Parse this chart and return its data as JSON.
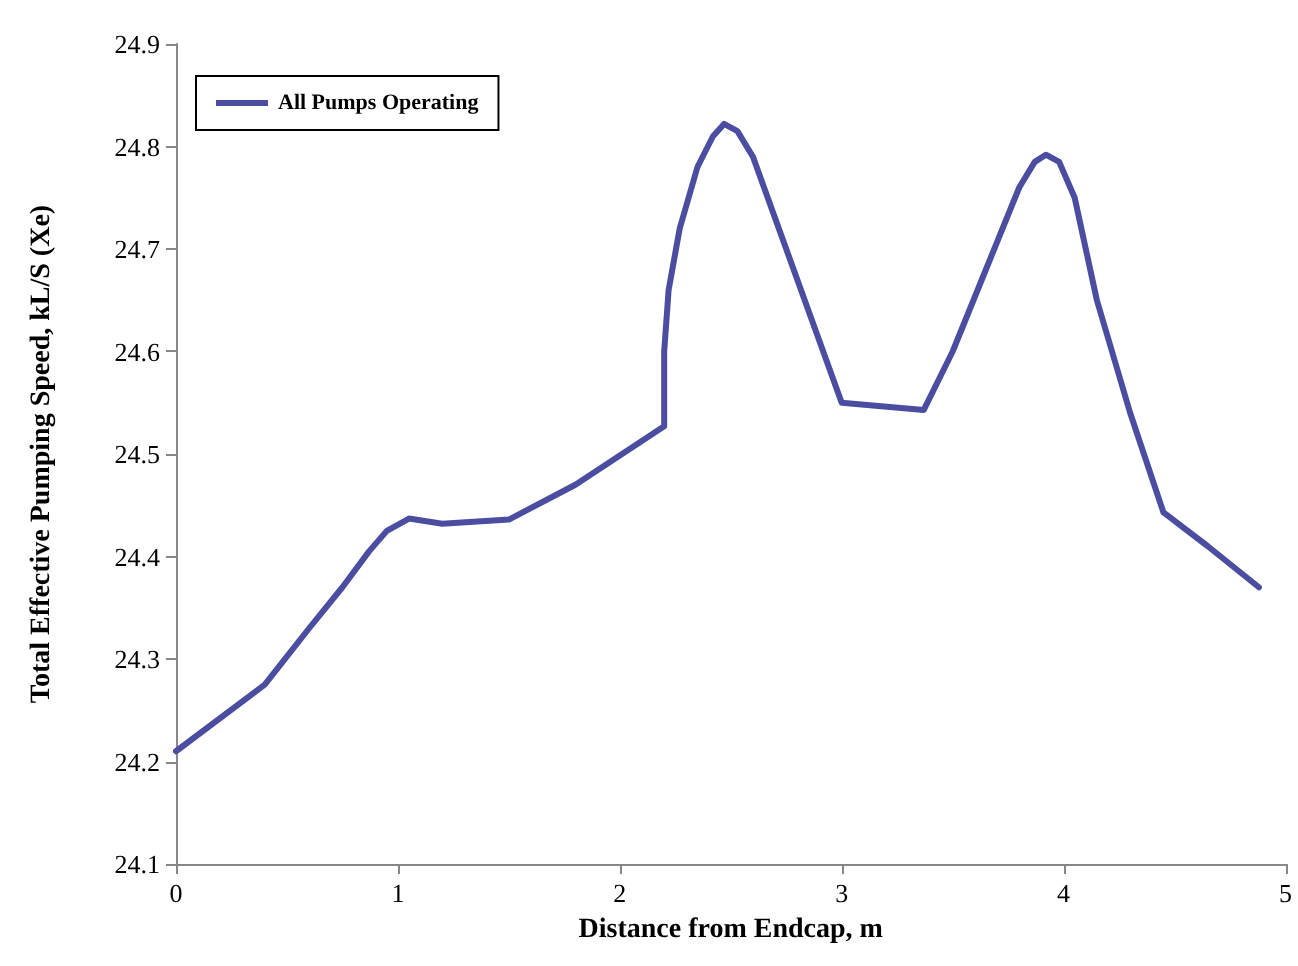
{
  "chart_data": {
    "type": "line",
    "xlabel": "Distance from Endcap, m",
    "ylabel": "Total Effective Pumping Speed, kL/S (Xe)",
    "xlim": [
      0,
      5
    ],
    "xticks": [
      0,
      1,
      2,
      3,
      4,
      5
    ],
    "ylim": [
      24.1,
      24.9
    ],
    "yticks": [
      24.1,
      24.2,
      24.3,
      24.4,
      24.5,
      24.6,
      24.7,
      24.8,
      24.9
    ],
    "grid": false,
    "legend": "top left",
    "marker": "none",
    "line_style": "solid",
    "series": [
      {
        "name": "All Pumps Operating",
        "color": "#4b4ea0",
        "x": [
          0,
          0.4,
          0.6,
          0.75,
          0.87,
          0.95,
          1.05,
          1.2,
          1.5,
          1.8,
          2.2,
          2.2,
          2.22,
          2.27,
          2.35,
          2.42,
          2.47,
          2.53,
          2.6,
          2.75,
          2.9,
          3.0,
          3.37,
          3.5,
          3.65,
          3.8,
          3.87,
          3.92,
          3.98,
          4.05,
          4.15,
          4.3,
          4.45,
          4.65,
          4.88
        ],
        "values": [
          24.21,
          24.275,
          24.33,
          24.37,
          24.405,
          24.425,
          24.437,
          24.432,
          24.436,
          24.47,
          24.527,
          24.6,
          24.66,
          24.72,
          24.78,
          24.81,
          24.822,
          24.815,
          24.79,
          24.7,
          24.61,
          24.55,
          24.543,
          24.6,
          24.68,
          24.76,
          24.785,
          24.792,
          24.785,
          24.75,
          24.65,
          24.54,
          24.443,
          24.41,
          24.37
        ]
      }
    ]
  }
}
